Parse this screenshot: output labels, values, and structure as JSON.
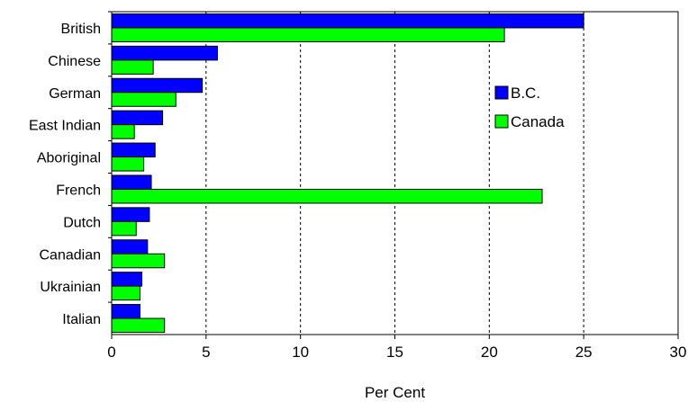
{
  "chart_data": {
    "type": "bar",
    "orientation": "horizontal",
    "title": "",
    "xlabel": "Per Cent",
    "ylabel": "",
    "xlim": [
      0,
      30
    ],
    "xticks": [
      0,
      5,
      10,
      15,
      20,
      25,
      30
    ],
    "grid": "vertical-dashed",
    "legend_position": "right",
    "categories": [
      "British",
      "Chinese",
      "German",
      "East Indian",
      "Aboriginal",
      "French",
      "Dutch",
      "Canadian",
      "Ukrainian",
      "Italian"
    ],
    "series": [
      {
        "name": "B.C.",
        "color": "#0000ff",
        "values": [
          25.0,
          5.6,
          4.8,
          2.7,
          2.3,
          2.1,
          2.0,
          1.9,
          1.6,
          1.5
        ]
      },
      {
        "name": "Canada",
        "color": "#00ff00",
        "values": [
          20.8,
          2.2,
          3.4,
          1.2,
          1.7,
          22.8,
          1.3,
          2.8,
          1.5,
          2.8
        ]
      }
    ]
  }
}
